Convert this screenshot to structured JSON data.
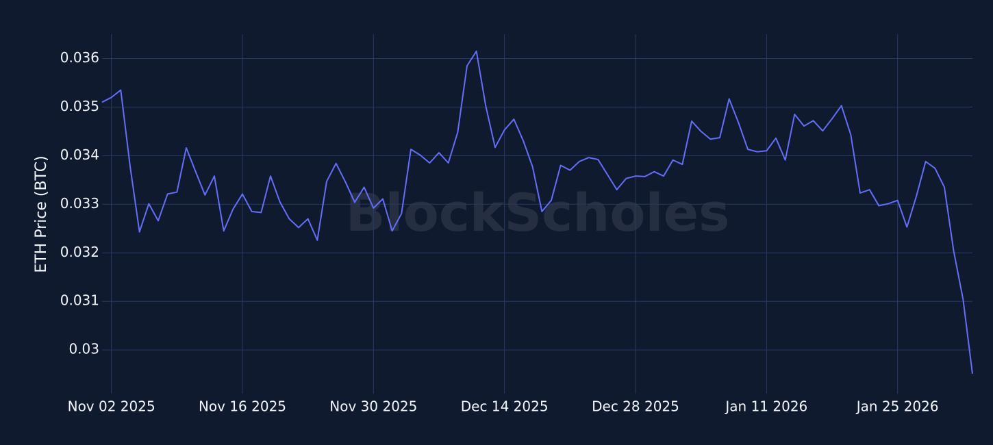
{
  "chart_data": {
    "type": "line",
    "y_label": "ETH Price (BTC)",
    "watermark": "BlockScholes",
    "grid": true,
    "xlim": [
      "2025-11-01",
      "2026-02-02"
    ],
    "xticks": [
      {
        "value": "2025-11-02",
        "label": "Nov 02 2025"
      },
      {
        "value": "2025-11-16",
        "label": "Nov 16 2025"
      },
      {
        "value": "2025-11-30",
        "label": "Nov 30 2025"
      },
      {
        "value": "2025-12-14",
        "label": "Dec 14 2025"
      },
      {
        "value": "2025-12-28",
        "label": "Dec 28 2025"
      },
      {
        "value": "2026-01-11",
        "label": "Jan 11 2026"
      },
      {
        "value": "2026-01-25",
        "label": "Jan 25 2026"
      }
    ],
    "ylim": [
      0.0291,
      0.0365
    ],
    "yticks": [
      0.03,
      0.031,
      0.032,
      0.033,
      0.034,
      0.035,
      0.036
    ],
    "x": [
      "2025-11-01",
      "2025-11-02",
      "2025-11-03",
      "2025-11-04",
      "2025-11-05",
      "2025-11-06",
      "2025-11-07",
      "2025-11-08",
      "2025-11-09",
      "2025-11-10",
      "2025-11-11",
      "2025-11-12",
      "2025-11-13",
      "2025-11-14",
      "2025-11-15",
      "2025-11-16",
      "2025-11-17",
      "2025-11-18",
      "2025-11-19",
      "2025-11-20",
      "2025-11-21",
      "2025-11-22",
      "2025-11-23",
      "2025-11-24",
      "2025-11-25",
      "2025-11-26",
      "2025-11-27",
      "2025-11-28",
      "2025-11-29",
      "2025-11-30",
      "2025-12-01",
      "2025-12-02",
      "2025-12-03",
      "2025-12-04",
      "2025-12-05",
      "2025-12-06",
      "2025-12-07",
      "2025-12-08",
      "2025-12-09",
      "2025-12-10",
      "2025-12-11",
      "2025-12-12",
      "2025-12-13",
      "2025-12-14",
      "2025-12-15",
      "2025-12-16",
      "2025-12-17",
      "2025-12-18",
      "2025-12-19",
      "2025-12-20",
      "2025-12-21",
      "2025-12-22",
      "2025-12-23",
      "2025-12-24",
      "2025-12-25",
      "2025-12-26",
      "2025-12-27",
      "2025-12-28",
      "2025-12-29",
      "2025-12-30",
      "2025-12-31",
      "2026-01-01",
      "2026-01-02",
      "2026-01-03",
      "2026-01-04",
      "2026-01-05",
      "2026-01-06",
      "2026-01-07",
      "2026-01-08",
      "2026-01-09",
      "2026-01-10",
      "2026-01-11",
      "2026-01-12",
      "2026-01-13",
      "2026-01-14",
      "2026-01-15",
      "2026-01-16",
      "2026-01-17",
      "2026-01-18",
      "2026-01-19",
      "2026-01-20",
      "2026-01-21",
      "2026-01-22",
      "2026-01-23",
      "2026-01-24",
      "2026-01-25",
      "2026-01-26",
      "2026-01-27",
      "2026-01-28",
      "2026-01-29",
      "2026-01-30",
      "2026-01-31",
      "2026-02-01",
      "2026-02-02"
    ],
    "series": [
      {
        "name": "ETH Price (BTC)",
        "color": "#636efa",
        "values": [
          0.0351,
          0.0352,
          0.03535,
          0.03378,
          0.03243,
          0.03301,
          0.03266,
          0.03321,
          0.03325,
          0.03416,
          0.03367,
          0.03319,
          0.03358,
          0.03245,
          0.0329,
          0.03321,
          0.03285,
          0.03283,
          0.03358,
          0.03305,
          0.0327,
          0.03252,
          0.0327,
          0.03226,
          0.03347,
          0.03384,
          0.03346,
          0.03304,
          0.03335,
          0.03292,
          0.03311,
          0.03245,
          0.03281,
          0.03413,
          0.03401,
          0.03385,
          0.03406,
          0.03385,
          0.03448,
          0.03585,
          0.03615,
          0.03502,
          0.03417,
          0.03453,
          0.03475,
          0.03431,
          0.03377,
          0.03285,
          0.03308,
          0.0338,
          0.0337,
          0.03388,
          0.03396,
          0.03392,
          0.03361,
          0.0333,
          0.03353,
          0.03358,
          0.03357,
          0.03367,
          0.03358,
          0.03391,
          0.03382,
          0.03471,
          0.0345,
          0.03434,
          0.03437,
          0.03517,
          0.03468,
          0.03413,
          0.03408,
          0.0341,
          0.03436,
          0.03391,
          0.03485,
          0.03461,
          0.03472,
          0.03451,
          0.03476,
          0.03503,
          0.03443,
          0.03323,
          0.0333,
          0.03297,
          0.03301,
          0.03308,
          0.03253,
          0.03316,
          0.03388,
          0.03374,
          0.03335,
          0.03203,
          0.03104,
          0.02951
        ]
      }
    ]
  }
}
